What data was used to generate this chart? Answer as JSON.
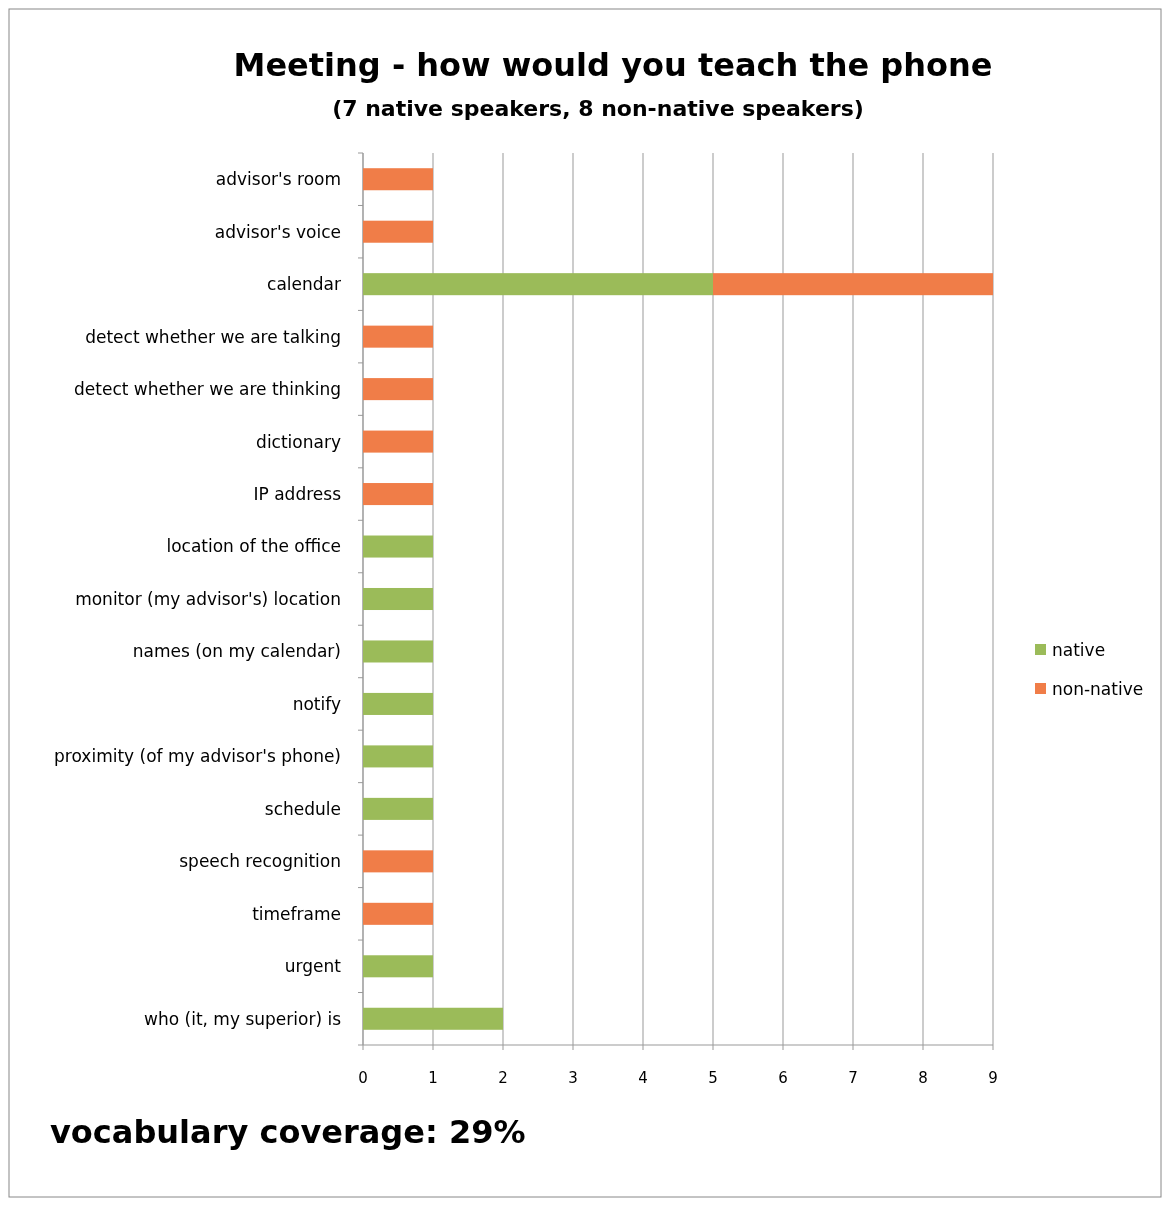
{
  "chart_data": {
    "type": "bar",
    "orientation": "horizontal",
    "stacked": true,
    "title": "Meeting -  how would you teach the phone",
    "subtitle": "(7 native speakers, 8 non-native speakers)",
    "categories": [
      "advisor's room",
      "advisor's voice",
      "calendar",
      "detect whether we are talking",
      "detect whether we are thinking",
      "dictionary",
      "IP address",
      "location of the office",
      "monitor (my advisor's) location",
      "names (on my calendar)",
      "notify",
      "proximity (of my advisor's phone)",
      "schedule",
      "speech recognition",
      "timeframe",
      "urgent",
      "who (it, my superior) is"
    ],
    "series": [
      {
        "name": "native",
        "color": "#9bbb59",
        "values": [
          0,
          0,
          5,
          0,
          0,
          0,
          0,
          1,
          1,
          1,
          1,
          1,
          1,
          0,
          0,
          1,
          2
        ]
      },
      {
        "name": "non-native",
        "color": "#f07d48",
        "values": [
          1,
          1,
          4,
          1,
          1,
          1,
          1,
          0,
          0,
          0,
          0,
          0,
          0,
          1,
          1,
          0,
          0
        ]
      }
    ],
    "xlim": [
      0,
      9
    ],
    "xticks": [
      0,
      1,
      2,
      3,
      4,
      5,
      6,
      7,
      8,
      9
    ],
    "grid": "x",
    "legend": "right",
    "annotations": [
      "vocabulary coverage: 29%"
    ]
  }
}
